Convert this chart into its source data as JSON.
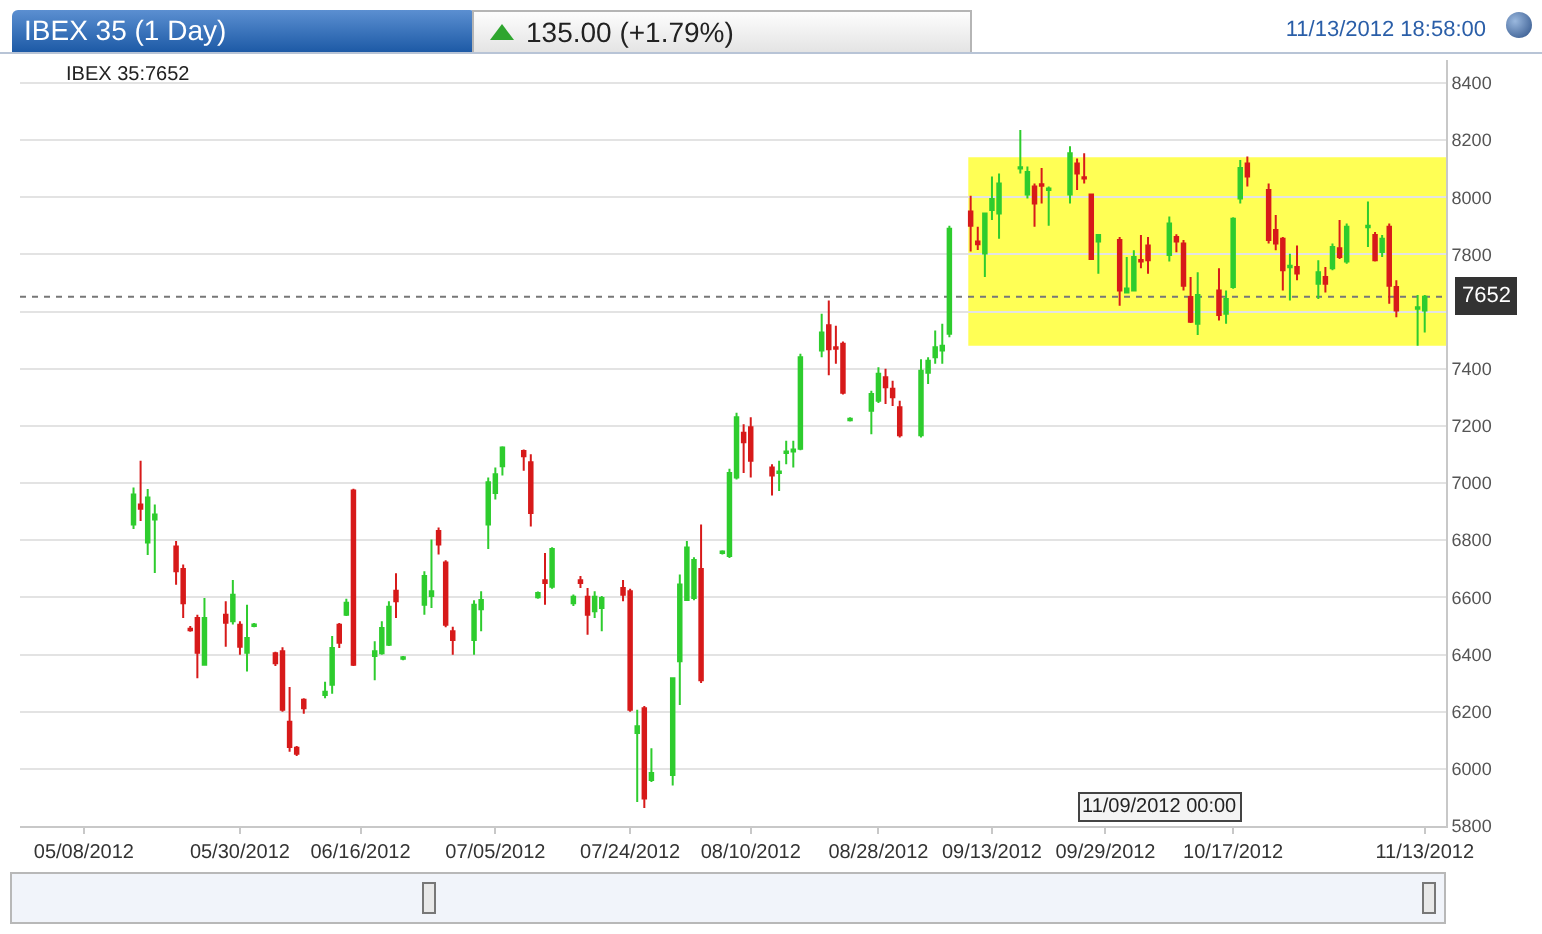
{
  "chart_data": {
    "type": "candlestick",
    "title": "IBEX 35 (1 Day)",
    "subtitle": "135.00 (+1.79%)",
    "annotations": [
      "11/13/2012 18:58:00",
      "IBEX 35:7652",
      "11/09/2012 00:00"
    ],
    "x": [
      "2012-05-15",
      "2012-05-16",
      "2012-05-17",
      "2012-05-18",
      "2012-05-21",
      "2012-05-22",
      "2012-05-23",
      "2012-05-24",
      "2012-05-25",
      "2012-05-28",
      "2012-05-29",
      "2012-05-30",
      "2012-05-31",
      "2012-06-01",
      "2012-06-04",
      "2012-06-05",
      "2012-06-06",
      "2012-06-07",
      "2012-06-08",
      "2012-06-11",
      "2012-06-12",
      "2012-06-13",
      "2012-06-14",
      "2012-06-15",
      "2012-06-18",
      "2012-06-19",
      "2012-06-20",
      "2012-06-21",
      "2012-06-22",
      "2012-06-25",
      "2012-06-26",
      "2012-06-27",
      "2012-06-28",
      "2012-06-29",
      "2012-07-02",
      "2012-07-03",
      "2012-07-04",
      "2012-07-05",
      "2012-07-06",
      "2012-07-09",
      "2012-07-10",
      "2012-07-11",
      "2012-07-12",
      "2012-07-13",
      "2012-07-16",
      "2012-07-17",
      "2012-07-18",
      "2012-07-19",
      "2012-07-20",
      "2012-07-23",
      "2012-07-24",
      "2012-07-25",
      "2012-07-26",
      "2012-07-27",
      "2012-07-30",
      "2012-07-31",
      "2012-08-01",
      "2012-08-02",
      "2012-08-03",
      "2012-08-06",
      "2012-08-07",
      "2012-08-08",
      "2012-08-09",
      "2012-08-10",
      "2012-08-13",
      "2012-08-14",
      "2012-08-15",
      "2012-08-16",
      "2012-08-17",
      "2012-08-20",
      "2012-08-21",
      "2012-08-22",
      "2012-08-23",
      "2012-08-24",
      "2012-08-27",
      "2012-08-28",
      "2012-08-29",
      "2012-08-30",
      "2012-08-31",
      "2012-09-03",
      "2012-09-04",
      "2012-09-05",
      "2012-09-06",
      "2012-09-07",
      "2012-09-10",
      "2012-09-11",
      "2012-09-12",
      "2012-09-13",
      "2012-09-14",
      "2012-09-17",
      "2012-09-18",
      "2012-09-19",
      "2012-09-20",
      "2012-09-21",
      "2012-09-24",
      "2012-09-25",
      "2012-09-26",
      "2012-09-27",
      "2012-09-28",
      "2012-10-01",
      "2012-10-02",
      "2012-10-03",
      "2012-10-04",
      "2012-10-05",
      "2012-10-08",
      "2012-10-09",
      "2012-10-10",
      "2012-10-11",
      "2012-10-12",
      "2012-10-15",
      "2012-10-16",
      "2012-10-17",
      "2012-10-18",
      "2012-10-19",
      "2012-10-22",
      "2012-10-23",
      "2012-10-24",
      "2012-10-25",
      "2012-10-26",
      "2012-10-29",
      "2012-10-30",
      "2012-10-31",
      "2012-11-01",
      "2012-11-02",
      "2012-11-05",
      "2012-11-06",
      "2012-11-07",
      "2012-11-08",
      "2012-11-09",
      "2012-11-12",
      "2012-11-13"
    ],
    "ohlc": [
      [
        6855,
        6984,
        6839,
        6960
      ],
      [
        6925,
        7078,
        6867,
        6910
      ],
      [
        6792,
        6979,
        6748,
        6949
      ],
      [
        6872,
        6925,
        6685,
        6890
      ],
      [
        6778,
        6797,
        6644,
        6691
      ],
      [
        6699,
        6715,
        6528,
        6579
      ],
      [
        6490,
        6500,
        6480,
        6485
      ],
      [
        6528,
        6539,
        6317,
        6406
      ],
      [
        6364,
        6598,
        6364,
        6528
      ],
      [
        6539,
        6586,
        6427,
        6511
      ],
      [
        6516,
        6661,
        6505,
        6609
      ],
      [
        6504,
        6516,
        6399,
        6427
      ],
      [
        6406,
        6574,
        6341,
        6458
      ],
      [
        6500,
        6510,
        6495,
        6505
      ],
      [
        6404,
        6410,
        6360,
        6369
      ],
      [
        6411,
        6425,
        6200,
        6207
      ],
      [
        6165,
        6286,
        6060,
        6076
      ],
      [
        6074,
        6080,
        6045,
        6053
      ],
      [
        6242,
        6247,
        6193,
        6212
      ],
      [
        6258,
        6305,
        6247,
        6270
      ],
      [
        6294,
        6465,
        6263,
        6423
      ],
      [
        6504,
        6510,
        6423,
        6441
      ],
      [
        6539,
        6595,
        6535,
        6581
      ],
      [
        6974,
        6980,
        6360,
        6364
      ],
      [
        6395,
        6446,
        6310,
        6411
      ],
      [
        6404,
        6516,
        6399,
        6493
      ],
      [
        6434,
        6586,
        6430,
        6567
      ],
      [
        6623,
        6684,
        6528,
        6586
      ],
      [
        6385,
        6395,
        6380,
        6390
      ],
      [
        6574,
        6691,
        6539,
        6675
      ],
      [
        6605,
        6802,
        6563,
        6621
      ],
      [
        6832,
        6844,
        6750,
        6785
      ],
      [
        6722,
        6730,
        6495,
        6504
      ],
      [
        6481,
        6497,
        6399,
        6451
      ],
      [
        6451,
        6590,
        6399,
        6574
      ],
      [
        6558,
        6621,
        6481,
        6591
      ],
      [
        6855,
        7019,
        6769,
        7003
      ],
      [
        6965,
        7054,
        6942,
        7031
      ],
      [
        7059,
        7129,
        7026,
        7124
      ],
      [
        7112,
        7117,
        7043,
        7094
      ],
      [
        7073,
        7101,
        6848,
        6895
      ],
      [
        6600,
        6620,
        6595,
        6615
      ],
      [
        6660,
        6755,
        6574,
        6650
      ],
      [
        6637,
        6775,
        6630,
        6769
      ],
      [
        6579,
        6610,
        6570,
        6602
      ],
      [
        6660,
        6675,
        6633,
        6650
      ],
      [
        6602,
        6633,
        6469,
        6539
      ],
      [
        6551,
        6621,
        6528,
        6602
      ],
      [
        6563,
        6605,
        6481,
        6598
      ],
      [
        6633,
        6661,
        6586,
        6609
      ],
      [
        6621,
        6630,
        6200,
        6207
      ],
      [
        6125,
        6207,
        5884,
        6149
      ],
      [
        6212,
        6220,
        5863,
        5896
      ],
      [
        5961,
        6072,
        5954,
        5985
      ],
      [
        5978,
        6320,
        5942,
        6317
      ],
      [
        6376,
        6680,
        6223,
        6645
      ],
      [
        6591,
        6797,
        6588,
        6774
      ],
      [
        6598,
        6740,
        6590,
        6731
      ],
      [
        6699,
        6855,
        6300,
        6310
      ],
      [
        6755,
        6765,
        6750,
        6760
      ],
      [
        6745,
        7050,
        6738,
        7035
      ],
      [
        7019,
        7246,
        7012,
        7230
      ],
      [
        7176,
        7206,
        7035,
        7143
      ],
      [
        7195,
        7230,
        7019,
        7078
      ],
      [
        7054,
        7066,
        6956,
        7026
      ],
      [
        7035,
        7078,
        6972,
        7040
      ],
      [
        7105,
        7148,
        7066,
        7110
      ],
      [
        7110,
        7148,
        7054,
        7117
      ],
      [
        7120,
        7452,
        7115,
        7440
      ],
      [
        7464,
        7592,
        7440,
        7527
      ],
      [
        7552,
        7639,
        7377,
        7468
      ],
      [
        7475,
        7550,
        7417,
        7470
      ],
      [
        7487,
        7495,
        7310,
        7316
      ],
      [
        7220,
        7230,
        7215,
        7225
      ],
      [
        7253,
        7323,
        7171,
        7311
      ],
      [
        7288,
        7405,
        7280,
        7382
      ],
      [
        7370,
        7400,
        7276,
        7335
      ],
      [
        7330,
        7358,
        7269,
        7300
      ],
      [
        7265,
        7288,
        7159,
        7167
      ],
      [
        7167,
        7433,
        7159,
        7393
      ],
      [
        7386,
        7440,
        7346,
        7428
      ],
      [
        7440,
        7534,
        7417,
        7475
      ],
      [
        7464,
        7557,
        7417,
        7480
      ],
      [
        7522,
        7900,
        7510,
        7890
      ],
      [
        7950,
        8005,
        7810,
        7900
      ],
      [
        7845,
        7897,
        7815,
        7835
      ],
      [
        7803,
        7943,
        7721,
        7943
      ],
      [
        7955,
        8072,
        7920,
        7994
      ],
      [
        7943,
        8083,
        7855,
        8048
      ],
      [
        8100,
        8235,
        8083,
        8105
      ],
      [
        8009,
        8107,
        7995,
        8088
      ],
      [
        8037,
        8048,
        7897,
        7978
      ],
      [
        8045,
        8102,
        7978,
        8040
      ],
      [
        8025,
        8037,
        7900,
        8030
      ],
      [
        8009,
        8178,
        7978,
        8154
      ],
      [
        8118,
        8135,
        8025,
        8083
      ],
      [
        8070,
        8154,
        8048,
        8065
      ],
      [
        8009,
        8013,
        7780,
        7784
      ],
      [
        7845,
        7870,
        7732,
        7868
      ],
      [
        7850,
        7861,
        7620,
        7674
      ],
      [
        7667,
        7791,
        7667,
        7681
      ],
      [
        7674,
        7814,
        7670,
        7791
      ],
      [
        7780,
        7868,
        7751,
        7775
      ],
      [
        7831,
        7861,
        7732,
        7779
      ],
      [
        7798,
        7932,
        7775,
        7908
      ],
      [
        7861,
        7870,
        7807,
        7845
      ],
      [
        7838,
        7850,
        7674,
        7690
      ],
      [
        7651,
        7721,
        7560,
        7564
      ],
      [
        7557,
        7737,
        7518,
        7658
      ],
      [
        7674,
        7751,
        7569,
        7588
      ],
      [
        7592,
        7674,
        7557,
        7644
      ],
      [
        7686,
        7930,
        7680,
        7925
      ],
      [
        7995,
        8130,
        7978,
        8102
      ],
      [
        8118,
        8142,
        8037,
        8072
      ],
      [
        8025,
        8048,
        7838,
        7850
      ],
      [
        7885,
        7938,
        7814,
        7838
      ],
      [
        7855,
        7861,
        7674,
        7744
      ],
      [
        7755,
        7802,
        7639,
        7760
      ],
      [
        7756,
        7831,
        7709,
        7733
      ],
      [
        7697,
        7779,
        7644,
        7737
      ],
      [
        7721,
        7756,
        7667,
        7697
      ],
      [
        7751,
        7838,
        7744,
        7826
      ],
      [
        7821,
        7920,
        7784,
        7791
      ],
      [
        7775,
        7908,
        7767,
        7897
      ],
      [
        7895,
        7985,
        7826,
        7900
      ],
      [
        7868,
        7878,
        7775,
        7779
      ],
      [
        7808,
        7868,
        7791,
        7855
      ],
      [
        7897,
        7908,
        7627,
        7690
      ],
      [
        7686,
        7709,
        7580,
        7604
      ],
      [
        7610,
        7658,
        7480,
        7615
      ],
      [
        7604,
        7658,
        7527,
        7652
      ]
    ],
    "colors": [
      "#2ecc2e",
      "#d71a1a",
      "#2ecc2e",
      "#2ecc2e",
      "#d71a1a",
      "#d71a1a",
      "#d71a1a",
      "#d71a1a",
      "#2ecc2e",
      "#d71a1a",
      "#2ecc2e",
      "#d71a1a",
      "#2ecc2e",
      "#2ecc2e",
      "#d71a1a",
      "#d71a1a",
      "#d71a1a",
      "#d71a1a",
      "#d71a1a",
      "#2ecc2e",
      "#2ecc2e",
      "#d71a1a",
      "#2ecc2e",
      "#d71a1a",
      "#2ecc2e",
      "#2ecc2e",
      "#2ecc2e",
      "#d71a1a",
      "#2ecc2e",
      "#2ecc2e",
      "#2ecc2e",
      "#d71a1a",
      "#d71a1a",
      "#d71a1a",
      "#2ecc2e",
      "#2ecc2e",
      "#2ecc2e",
      "#2ecc2e",
      "#2ecc2e",
      "#d71a1a",
      "#d71a1a",
      "#2ecc2e",
      "#d71a1a",
      "#2ecc2e",
      "#2ecc2e",
      "#d71a1a",
      "#d71a1a",
      "#2ecc2e",
      "#2ecc2e",
      "#d71a1a",
      "#d71a1a",
      "#2ecc2e",
      "#d71a1a",
      "#2ecc2e",
      "#2ecc2e",
      "#2ecc2e",
      "#2ecc2e",
      "#2ecc2e",
      "#d71a1a",
      "#2ecc2e",
      "#2ecc2e",
      "#2ecc2e",
      "#d71a1a",
      "#d71a1a",
      "#d71a1a",
      "#2ecc2e",
      "#2ecc2e",
      "#2ecc2e",
      "#2ecc2e",
      "#2ecc2e",
      "#d71a1a",
      "#d71a1a",
      "#d71a1a",
      "#2ecc2e",
      "#2ecc2e",
      "#2ecc2e",
      "#d71a1a",
      "#d71a1a",
      "#d71a1a",
      "#2ecc2e",
      "#2ecc2e",
      "#2ecc2e",
      "#2ecc2e",
      "#2ecc2e",
      "#d71a1a",
      "#d71a1a",
      "#2ecc2e",
      "#2ecc2e",
      "#2ecc2e",
      "#2ecc2e",
      "#2ecc2e",
      "#d71a1a",
      "#d71a1a",
      "#2ecc2e",
      "#2ecc2e",
      "#d71a1a",
      "#d71a1a",
      "#d71a1a",
      "#2ecc2e",
      "#d71a1a",
      "#2ecc2e",
      "#2ecc2e",
      "#d71a1a",
      "#d71a1a",
      "#2ecc2e",
      "#d71a1a",
      "#d71a1a",
      "#d71a1a",
      "#2ecc2e",
      "#d71a1a",
      "#2ecc2e",
      "#2ecc2e",
      "#2ecc2e",
      "#d71a1a",
      "#d71a1a",
      "#d71a1a",
      "#d71a1a",
      "#2ecc2e",
      "#d71a1a",
      "#2ecc2e",
      "#d71a1a",
      "#2ecc2e",
      "#d71a1a",
      "#2ecc2e",
      "#2ecc2e",
      "#d71a1a",
      "#2ecc2e",
      "#d71a1a",
      "#d71a1a",
      "#2ecc2e",
      "#2ecc2e"
    ],
    "xlim": [
      "2012-04-29",
      "2012-11-16"
    ],
    "xticks": [
      {
        "value": "2012-05-08",
        "label": "05/08/2012"
      },
      {
        "value": "2012-05-30",
        "label": "05/30/2012"
      },
      {
        "value": "2012-06-16",
        "label": "06/16/2012"
      },
      {
        "value": "2012-07-05",
        "label": "07/05/2012"
      },
      {
        "value": "2012-07-24",
        "label": "07/24/2012"
      },
      {
        "value": "2012-08-10",
        "label": "08/10/2012"
      },
      {
        "value": "2012-08-28",
        "label": "08/28/2012"
      },
      {
        "value": "2012-09-13",
        "label": "09/13/2012"
      },
      {
        "value": "2012-09-29",
        "label": "09/29/2012"
      },
      {
        "value": "2012-10-17",
        "label": "10/17/2012"
      },
      {
        "value": "2012-11-13",
        "label": "11/13/2012"
      }
    ],
    "ylim": [
      5800,
      8480
    ],
    "yticks": [
      5800,
      6000,
      6200,
      6400,
      6600,
      6800,
      7000,
      7200,
      7400,
      {
        "value": 7600,
        "label": null
      },
      7800,
      8000,
      8200,
      8400
    ],
    "grid": "y",
    "bands": [
      {
        "axis": "y",
        "from": 7480,
        "to": 8140,
        "color": "#ffff55"
      }
    ],
    "ref_lines": [
      {
        "axis": "y",
        "value": 7652,
        "label": "7652",
        "line_style": "dotted",
        "color": "#777777"
      }
    ]
  }
}
